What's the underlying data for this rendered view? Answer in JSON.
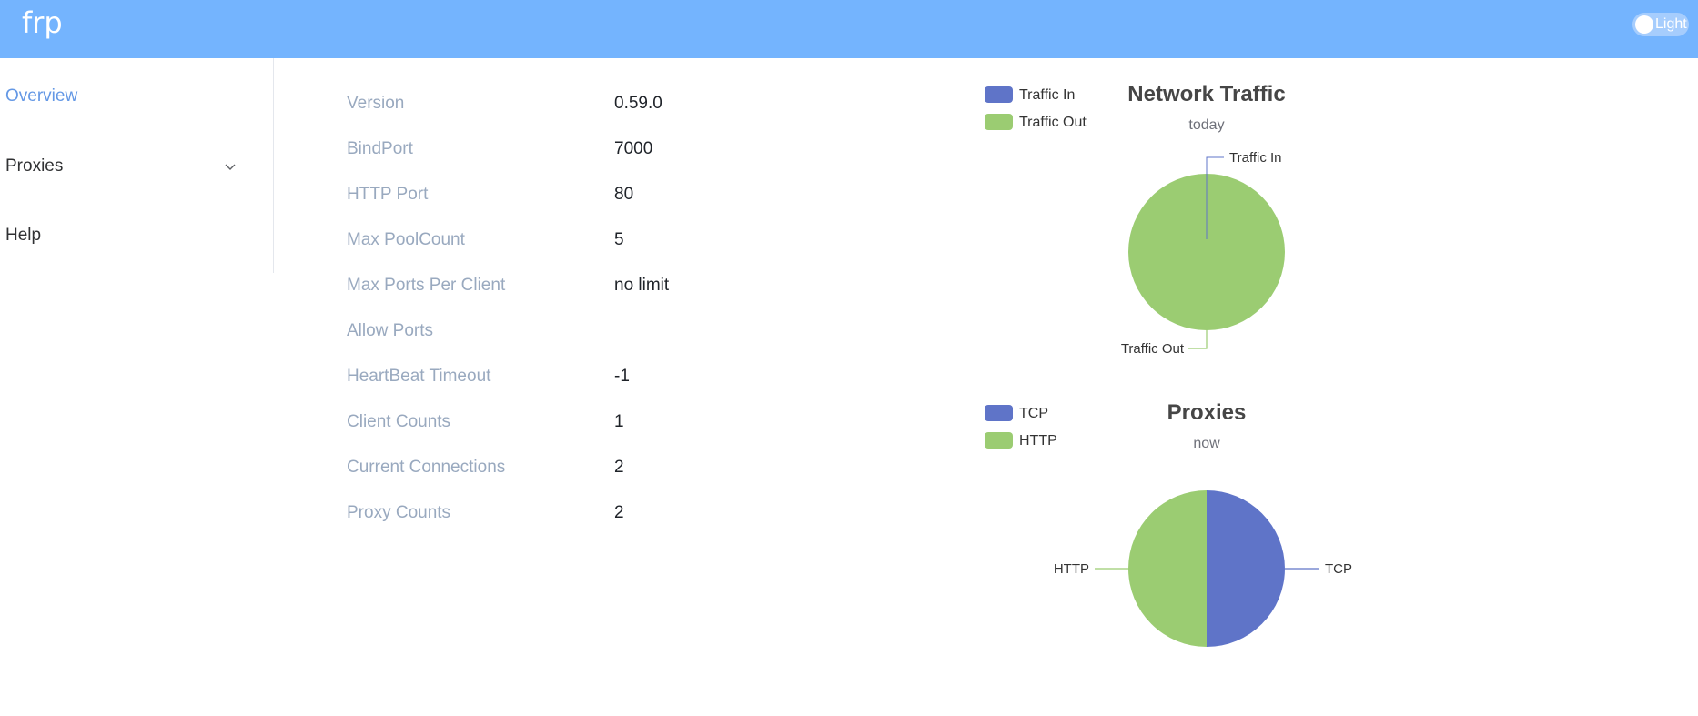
{
  "header": {
    "brand": "frp",
    "theme_label": "Light"
  },
  "sidebar": {
    "items": [
      {
        "label": "Overview",
        "active": true
      },
      {
        "label": "Proxies",
        "active": false
      },
      {
        "label": "Help",
        "active": false
      }
    ]
  },
  "info": [
    {
      "key": "Version",
      "value": "0.59.0"
    },
    {
      "key": "BindPort",
      "value": "7000"
    },
    {
      "key": "HTTP Port",
      "value": "80"
    },
    {
      "key": "Max PoolCount",
      "value": "5"
    },
    {
      "key": "Max Ports Per Client",
      "value": "no limit"
    },
    {
      "key": "Allow Ports",
      "value": ""
    },
    {
      "key": "HeartBeat Timeout",
      "value": "-1"
    },
    {
      "key": "Client Counts",
      "value": "1"
    },
    {
      "key": "Current Connections",
      "value": "2"
    },
    {
      "key": "Proxy Counts",
      "value": "2"
    }
  ],
  "colors": {
    "header": "#74b4fe",
    "series_blue": "#5f74c8",
    "series_green": "#9bcc72"
  },
  "chart_data": [
    {
      "type": "pie",
      "title": "Network Traffic",
      "subtitle": "today",
      "legend_position": "top-left",
      "categories": [
        "Traffic In",
        "Traffic Out"
      ],
      "values": [
        0,
        1
      ],
      "colors": [
        "#5f74c8",
        "#9bcc72"
      ]
    },
    {
      "type": "pie",
      "title": "Proxies",
      "subtitle": "now",
      "legend_position": "top-left",
      "categories": [
        "TCP",
        "HTTP"
      ],
      "values": [
        1,
        1
      ],
      "colors": [
        "#5f74c8",
        "#9bcc72"
      ]
    }
  ]
}
